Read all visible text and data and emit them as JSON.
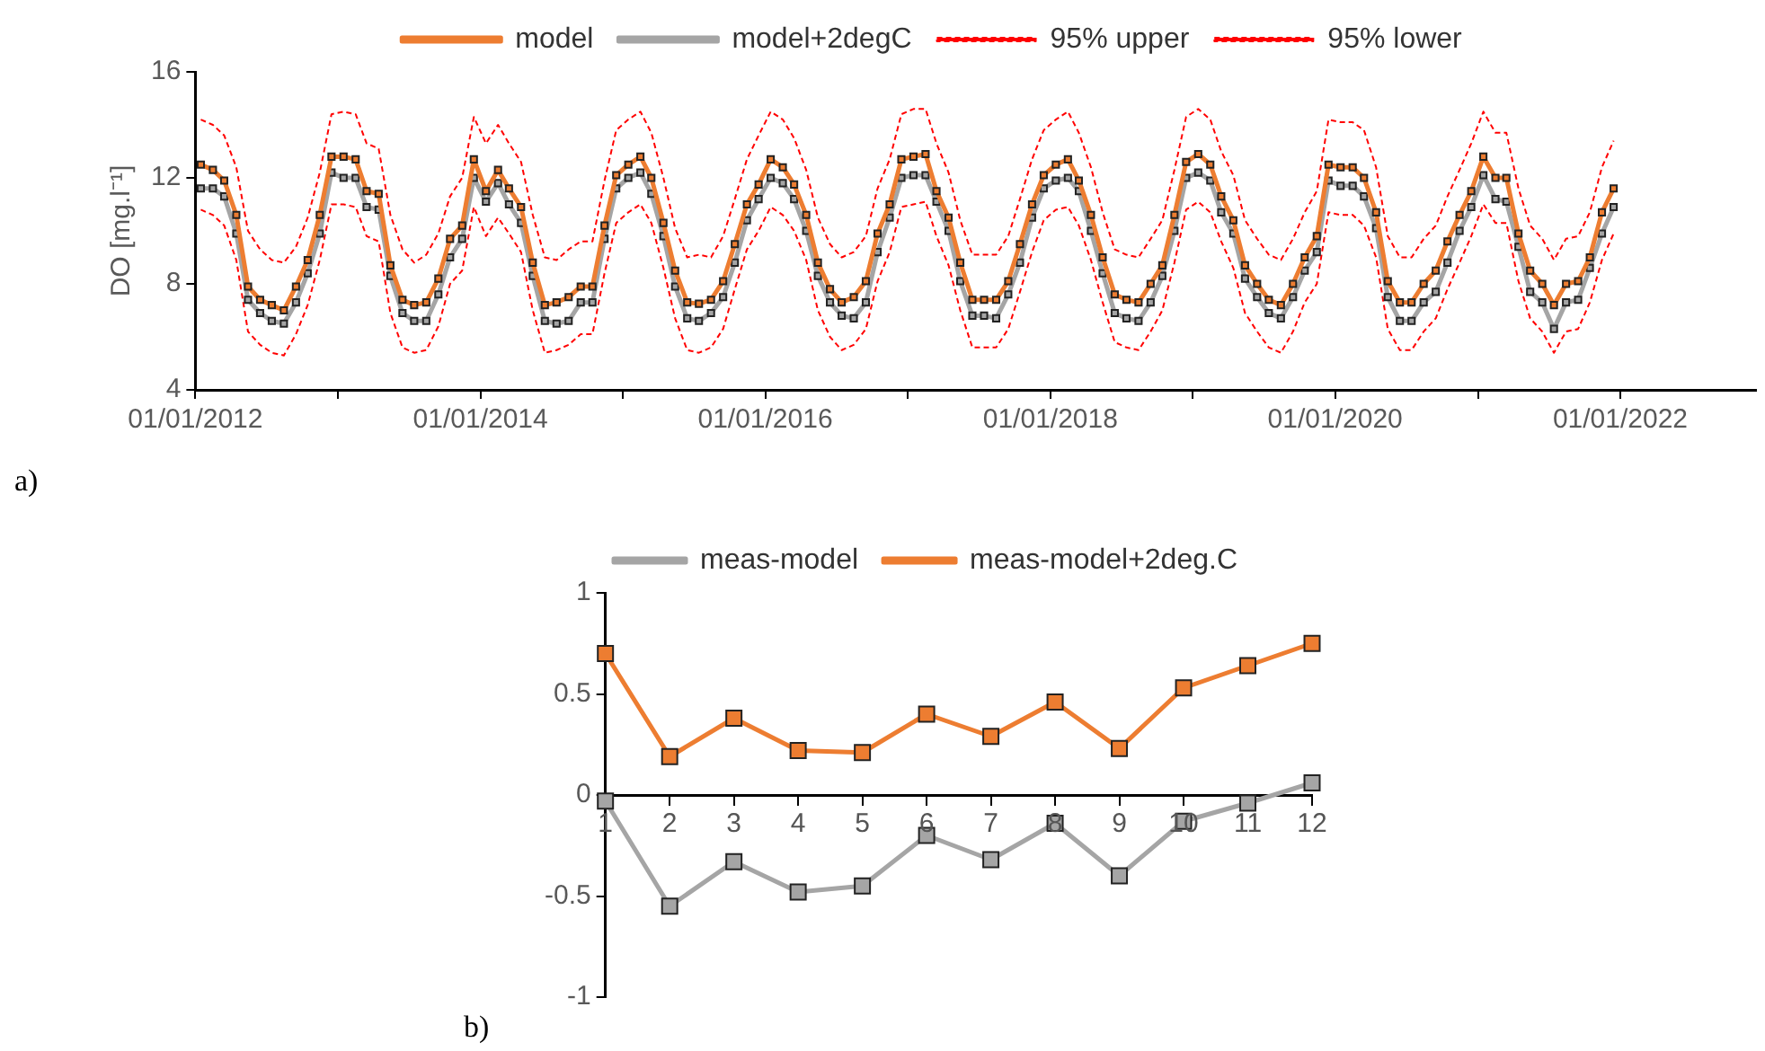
{
  "chart_data": [
    {
      "type": "line",
      "ylabel": "DO [mg.l⁻¹]",
      "legend": "top",
      "grid": false,
      "annotations": [
        "a)"
      ],
      "ylim": [
        4,
        16
      ],
      "yticks": [
        4,
        8,
        12,
        16
      ],
      "xlim": [
        "2012-01-01",
        "2022-12-15"
      ],
      "xticks": [
        {
          "value": "2012-01-01",
          "label": "01/01/2012"
        },
        {
          "value": "2013-01-01",
          "label": null
        },
        {
          "value": "2014-01-01",
          "label": "01/01/2014"
        },
        {
          "value": "2015-01-01",
          "label": null
        },
        {
          "value": "2016-01-01",
          "label": "01/01/2016"
        },
        {
          "value": "2017-01-01",
          "label": null
        },
        {
          "value": "2018-01-01",
          "label": "01/01/2018"
        },
        {
          "value": "2019-01-01",
          "label": null
        },
        {
          "value": "2020-01-01",
          "label": "01/01/2020"
        },
        {
          "value": "2021-01-01",
          "label": null
        },
        {
          "value": "2022-01-01",
          "label": "01/01/2022"
        }
      ],
      "x": [
        "2012-01-15",
        "2012-02-15",
        "2012-03-15",
        "2012-04-15",
        "2012-05-15",
        "2012-06-15",
        "2012-07-15",
        "2012-08-15",
        "2012-09-15",
        "2012-10-15",
        "2012-11-15",
        "2012-12-15",
        "2013-01-15",
        "2013-02-15",
        "2013-03-15",
        "2013-04-15",
        "2013-05-15",
        "2013-06-15",
        "2013-07-15",
        "2013-08-15",
        "2013-09-15",
        "2013-10-15",
        "2013-11-15",
        "2013-12-15",
        "2014-01-15",
        "2014-02-15",
        "2014-03-15",
        "2014-04-15",
        "2014-05-15",
        "2014-06-15",
        "2014-07-15",
        "2014-08-15",
        "2014-09-15",
        "2014-10-15",
        "2014-11-15",
        "2014-12-15",
        "2015-01-15",
        "2015-02-15",
        "2015-03-15",
        "2015-04-15",
        "2015-05-15",
        "2015-06-15",
        "2015-07-15",
        "2015-08-15",
        "2015-09-15",
        "2015-10-15",
        "2015-11-15",
        "2015-12-15",
        "2016-01-15",
        "2016-02-15",
        "2016-03-15",
        "2016-04-15",
        "2016-05-15",
        "2016-06-15",
        "2016-07-15",
        "2016-08-15",
        "2016-09-15",
        "2016-10-15",
        "2016-11-15",
        "2016-12-15",
        "2017-01-15",
        "2017-02-15",
        "2017-03-15",
        "2017-04-15",
        "2017-05-15",
        "2017-06-15",
        "2017-07-15",
        "2017-08-15",
        "2017-09-15",
        "2017-10-15",
        "2017-11-15",
        "2017-12-15",
        "2018-01-15",
        "2018-02-15",
        "2018-03-15",
        "2018-04-15",
        "2018-05-15",
        "2018-06-15",
        "2018-07-15",
        "2018-08-15",
        "2018-09-15",
        "2018-10-15",
        "2018-11-15",
        "2018-12-15",
        "2019-01-15",
        "2019-02-15",
        "2019-03-15",
        "2019-04-15",
        "2019-05-15",
        "2019-06-15",
        "2019-07-15",
        "2019-08-15",
        "2019-09-15",
        "2019-10-15",
        "2019-11-15",
        "2019-12-15",
        "2020-01-15",
        "2020-02-15",
        "2020-03-15",
        "2020-04-15",
        "2020-05-15",
        "2020-06-15",
        "2020-07-15",
        "2020-08-15",
        "2020-09-15",
        "2020-10-15",
        "2020-11-15",
        "2020-12-15",
        "2021-01-15",
        "2021-02-15",
        "2021-03-15",
        "2021-04-15",
        "2021-05-15",
        "2021-06-15",
        "2021-07-15",
        "2021-08-15",
        "2021-09-15",
        "2021-10-15",
        "2021-11-15",
        "2021-12-15"
      ],
      "series": [
        {
          "name": "model",
          "color": "#ed7d31",
          "marker": "square",
          "line_style": "solid",
          "values": [
            12.5,
            12.3,
            11.9,
            10.6,
            7.9,
            7.4,
            7.2,
            7.0,
            7.9,
            8.9,
            10.6,
            12.8,
            12.8,
            12.7,
            11.5,
            11.4,
            8.7,
            7.4,
            7.2,
            7.3,
            8.2,
            9.7,
            10.2,
            12.7,
            11.5,
            12.3,
            11.6,
            10.9,
            8.8,
            7.2,
            7.3,
            7.5,
            7.9,
            7.9,
            10.2,
            12.1,
            12.5,
            12.8,
            12.0,
            10.3,
            8.5,
            7.3,
            7.25,
            7.4,
            8.1,
            9.5,
            11.0,
            11.75,
            12.7,
            12.4,
            11.75,
            10.6,
            8.8,
            7.8,
            7.3,
            7.5,
            8.1,
            9.9,
            11.0,
            12.7,
            12.8,
            12.9,
            11.5,
            10.5,
            8.8,
            7.4,
            7.4,
            7.4,
            8.1,
            9.5,
            11.0,
            12.1,
            12.5,
            12.7,
            11.9,
            10.6,
            9.0,
            7.6,
            7.4,
            7.3,
            8.0,
            8.7,
            10.6,
            12.6,
            12.9,
            12.5,
            11.3,
            10.4,
            8.7,
            8.0,
            7.4,
            7.2,
            8.0,
            9.0,
            9.8,
            12.5,
            12.4,
            12.4,
            12.0,
            10.7,
            8.1,
            7.3,
            7.3,
            8.0,
            8.5,
            9.6,
            10.6,
            11.5,
            12.8,
            12.0,
            12.0,
            9.9,
            8.5,
            8.0,
            7.2,
            8.0,
            8.1,
            9.0,
            10.7,
            11.6
          ]
        },
        {
          "name": "model+2degC",
          "color": "#a5a5a5",
          "marker": "square",
          "line_style": "solid",
          "values": [
            11.6,
            11.6,
            11.3,
            9.9,
            7.4,
            6.9,
            6.6,
            6.5,
            7.3,
            8.4,
            9.9,
            12.2,
            12.0,
            12.0,
            10.9,
            10.8,
            8.3,
            6.9,
            6.6,
            6.6,
            7.6,
            9.0,
            9.7,
            12.0,
            11.1,
            11.8,
            11.0,
            10.3,
            8.3,
            6.6,
            6.5,
            6.6,
            7.3,
            7.3,
            9.7,
            11.6,
            12.0,
            12.2,
            11.4,
            9.8,
            7.9,
            6.7,
            6.6,
            6.9,
            7.5,
            8.8,
            10.4,
            11.2,
            12.0,
            11.8,
            11.2,
            10.0,
            8.3,
            7.3,
            6.8,
            6.7,
            7.3,
            9.2,
            10.5,
            12.0,
            12.1,
            12.1,
            11.1,
            10.0,
            8.1,
            6.8,
            6.8,
            6.7,
            7.6,
            8.8,
            10.5,
            11.6,
            11.9,
            12.0,
            11.5,
            10.0,
            8.4,
            6.9,
            6.7,
            6.6,
            7.3,
            8.3,
            10.0,
            12.0,
            12.2,
            11.9,
            10.7,
            9.9,
            8.2,
            7.5,
            6.9,
            6.7,
            7.5,
            8.5,
            9.2,
            11.9,
            11.7,
            11.7,
            11.3,
            10.1,
            7.5,
            6.6,
            6.6,
            7.3,
            7.7,
            8.8,
            10.0,
            10.9,
            12.1,
            11.2,
            11.1,
            9.4,
            7.7,
            7.3,
            6.3,
            7.3,
            7.4,
            8.6,
            9.9,
            10.9
          ]
        },
        {
          "name": "95% upper",
          "color": "#ff0000",
          "marker": "none",
          "line_style": "dashed",
          "values": [
            14.2,
            14.0,
            13.6,
            12.4,
            10.0,
            9.3,
            8.9,
            8.8,
            9.4,
            10.5,
            12.2,
            14.4,
            14.5,
            14.4,
            13.3,
            13.1,
            10.6,
            9.3,
            8.8,
            9.1,
            9.9,
            11.3,
            12.0,
            14.3,
            13.3,
            14.0,
            13.3,
            12.6,
            10.6,
            9.0,
            8.9,
            9.3,
            9.6,
            9.6,
            11.9,
            13.8,
            14.2,
            14.5,
            13.7,
            12.0,
            10.1,
            9.0,
            9.1,
            9.0,
            9.8,
            11.2,
            12.7,
            13.6,
            14.5,
            14.2,
            13.5,
            12.3,
            10.5,
            9.5,
            9.0,
            9.2,
            9.8,
            11.6,
            12.7,
            14.4,
            14.6,
            14.6,
            13.3,
            12.2,
            10.4,
            9.1,
            9.1,
            9.1,
            9.8,
            11.2,
            12.7,
            13.8,
            14.2,
            14.5,
            13.7,
            12.4,
            10.7,
            9.3,
            9.1,
            9.0,
            9.7,
            10.4,
            12.3,
            14.3,
            14.6,
            14.2,
            13.0,
            12.1,
            10.4,
            9.7,
            9.1,
            8.9,
            9.7,
            10.7,
            11.5,
            14.2,
            14.1,
            14.1,
            13.8,
            12.4,
            9.8,
            9.0,
            9.0,
            9.7,
            10.2,
            11.3,
            12.3,
            13.3,
            14.5,
            13.7,
            13.7,
            11.6,
            10.2,
            9.7,
            8.9,
            9.7,
            9.8,
            10.7,
            12.4,
            13.4
          ]
        },
        {
          "name": "95% lower",
          "color": "#ff0000",
          "marker": "none",
          "line_style": "dashed",
          "values": [
            10.8,
            10.6,
            10.2,
            8.9,
            6.2,
            5.7,
            5.4,
            5.3,
            6.1,
            7.2,
            8.9,
            11.0,
            11.0,
            10.9,
            9.8,
            9.6,
            6.9,
            5.6,
            5.4,
            5.5,
            6.4,
            8.0,
            8.5,
            10.9,
            9.8,
            10.5,
            9.9,
            9.2,
            7.0,
            5.4,
            5.5,
            5.7,
            6.1,
            6.1,
            8.4,
            10.3,
            10.7,
            11.0,
            10.3,
            8.6,
            6.7,
            5.5,
            5.4,
            5.6,
            6.3,
            7.8,
            9.3,
            10.0,
            10.9,
            10.6,
            10.0,
            8.9,
            7.0,
            6.0,
            5.5,
            5.7,
            6.3,
            8.1,
            9.2,
            10.9,
            11.0,
            11.1,
            9.8,
            8.7,
            7.0,
            5.6,
            5.6,
            5.6,
            6.3,
            7.7,
            9.2,
            10.4,
            10.8,
            10.9,
            10.2,
            8.9,
            7.3,
            5.8,
            5.6,
            5.5,
            6.2,
            7.0,
            8.8,
            10.8,
            11.1,
            10.7,
            9.6,
            8.6,
            6.9,
            6.2,
            5.6,
            5.4,
            6.2,
            7.3,
            8.0,
            10.7,
            10.6,
            10.6,
            10.2,
            9.0,
            6.3,
            5.5,
            5.5,
            6.2,
            6.7,
            7.8,
            8.8,
            9.8,
            11.0,
            10.3,
            10.3,
            8.1,
            6.7,
            6.2,
            5.4,
            6.2,
            6.3,
            7.3,
            8.9,
            9.9
          ]
        }
      ]
    },
    {
      "type": "line",
      "legend": "top",
      "grid": false,
      "annotations": [
        "b)"
      ],
      "ylim": [
        -1,
        1
      ],
      "yticks": [
        -1,
        -0.5,
        0,
        0.5,
        1
      ],
      "categories": [
        "1",
        "2",
        "3",
        "4",
        "5",
        "6",
        "7",
        "8",
        "9",
        "10",
        "11",
        "12"
      ],
      "series": [
        {
          "name": "meas-model",
          "color": "#a5a5a5",
          "marker": "square",
          "line_style": "solid",
          "values": [
            -0.03,
            -0.55,
            -0.33,
            -0.48,
            -0.45,
            -0.2,
            -0.32,
            -0.14,
            -0.4,
            -0.13,
            -0.04,
            0.06
          ]
        },
        {
          "name": "meas-model+2deg.C",
          "color": "#ed7d31",
          "marker": "square",
          "line_style": "solid",
          "values": [
            0.7,
            0.19,
            0.38,
            0.22,
            0.21,
            0.4,
            0.29,
            0.46,
            0.23,
            0.53,
            0.64,
            0.75
          ]
        }
      ]
    }
  ]
}
